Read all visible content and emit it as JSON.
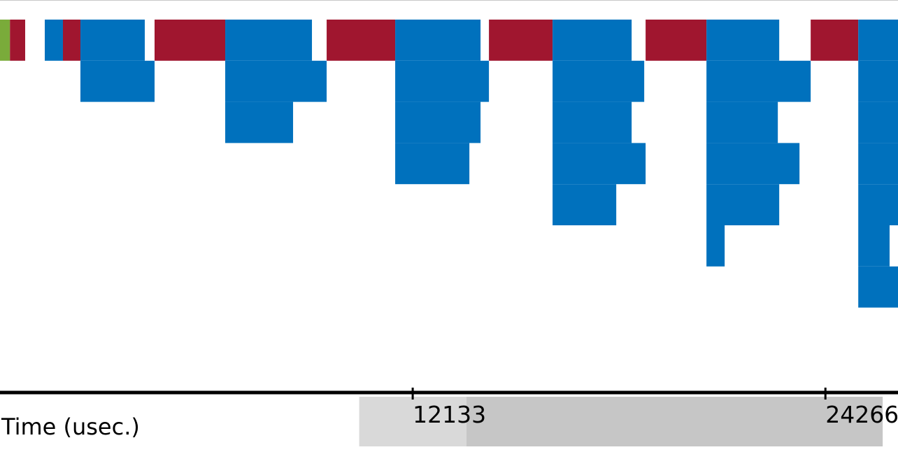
{
  "chart_data": {
    "type": "timeline",
    "xlabel": "Time (usec.)",
    "xlim": [
      0,
      26400
    ],
    "ticks": [
      {
        "value": 12133,
        "label": "12133"
      },
      {
        "value": 24266,
        "label": "24266"
      }
    ],
    "rows": 9,
    "colors": {
      "green": "#7aab3a",
      "red": "#a0162f",
      "blue": "#0071bd"
    },
    "scrollbar": {
      "view_start": 10560,
      "view_end": 13710,
      "window_start": 13710,
      "window_end": 25950
    },
    "events": [
      {
        "row": 0,
        "start": 0,
        "end": 293,
        "color": "green"
      },
      {
        "row": 0,
        "start": 293,
        "end": 740,
        "color": "red"
      },
      {
        "row": 0,
        "start": 1316,
        "end": 1850,
        "color": "blue"
      },
      {
        "row": 0,
        "start": 1850,
        "end": 2364,
        "color": "red"
      },
      {
        "row": 0,
        "start": 2364,
        "end": 4256,
        "color": "blue"
      },
      {
        "row": 0,
        "start": 4544,
        "end": 6621,
        "color": "red"
      },
      {
        "row": 0,
        "start": 6621,
        "end": 9171,
        "color": "blue"
      },
      {
        "row": 0,
        "start": 9603,
        "end": 11618,
        "color": "red"
      },
      {
        "row": 0,
        "start": 11618,
        "end": 14127,
        "color": "blue"
      },
      {
        "row": 0,
        "start": 14374,
        "end": 16245,
        "color": "red"
      },
      {
        "row": 0,
        "start": 16245,
        "end": 18569,
        "color": "blue"
      },
      {
        "row": 0,
        "start": 18980,
        "end": 20769,
        "color": "red"
      },
      {
        "row": 0,
        "start": 20769,
        "end": 22908,
        "color": "blue"
      },
      {
        "row": 0,
        "start": 23833,
        "end": 25232,
        "color": "red"
      },
      {
        "row": 0,
        "start": 25232,
        "end": 26400,
        "color": "blue"
      },
      {
        "row": 1,
        "start": 2364,
        "end": 4544,
        "color": "blue"
      },
      {
        "row": 1,
        "start": 6621,
        "end": 9603,
        "color": "blue"
      },
      {
        "row": 1,
        "start": 11618,
        "end": 14374,
        "color": "blue"
      },
      {
        "row": 1,
        "start": 16245,
        "end": 18939,
        "color": "blue"
      },
      {
        "row": 1,
        "start": 20769,
        "end": 23833,
        "color": "blue"
      },
      {
        "row": 1,
        "start": 25232,
        "end": 26400,
        "color": "blue"
      },
      {
        "row": 2,
        "start": 6621,
        "end": 8616,
        "color": "blue"
      },
      {
        "row": 2,
        "start": 11618,
        "end": 14127,
        "color": "blue"
      },
      {
        "row": 2,
        "start": 16245,
        "end": 18569,
        "color": "blue"
      },
      {
        "row": 2,
        "start": 20769,
        "end": 22867,
        "color": "blue"
      },
      {
        "row": 2,
        "start": 25232,
        "end": 26400,
        "color": "blue"
      },
      {
        "row": 3,
        "start": 11618,
        "end": 13799,
        "color": "blue"
      },
      {
        "row": 3,
        "start": 16245,
        "end": 18980,
        "color": "blue"
      },
      {
        "row": 3,
        "start": 20769,
        "end": 23504,
        "color": "blue"
      },
      {
        "row": 3,
        "start": 25232,
        "end": 26400,
        "color": "blue"
      },
      {
        "row": 4,
        "start": 16245,
        "end": 18117,
        "color": "blue"
      },
      {
        "row": 4,
        "start": 20769,
        "end": 22908,
        "color": "blue"
      },
      {
        "row": 4,
        "start": 25232,
        "end": 26400,
        "color": "blue"
      },
      {
        "row": 5,
        "start": 20769,
        "end": 21304,
        "color": "blue"
      },
      {
        "row": 5,
        "start": 25232,
        "end": 26153,
        "color": "blue"
      },
      {
        "row": 6,
        "start": 25232,
        "end": 26400,
        "color": "blue"
      }
    ]
  }
}
